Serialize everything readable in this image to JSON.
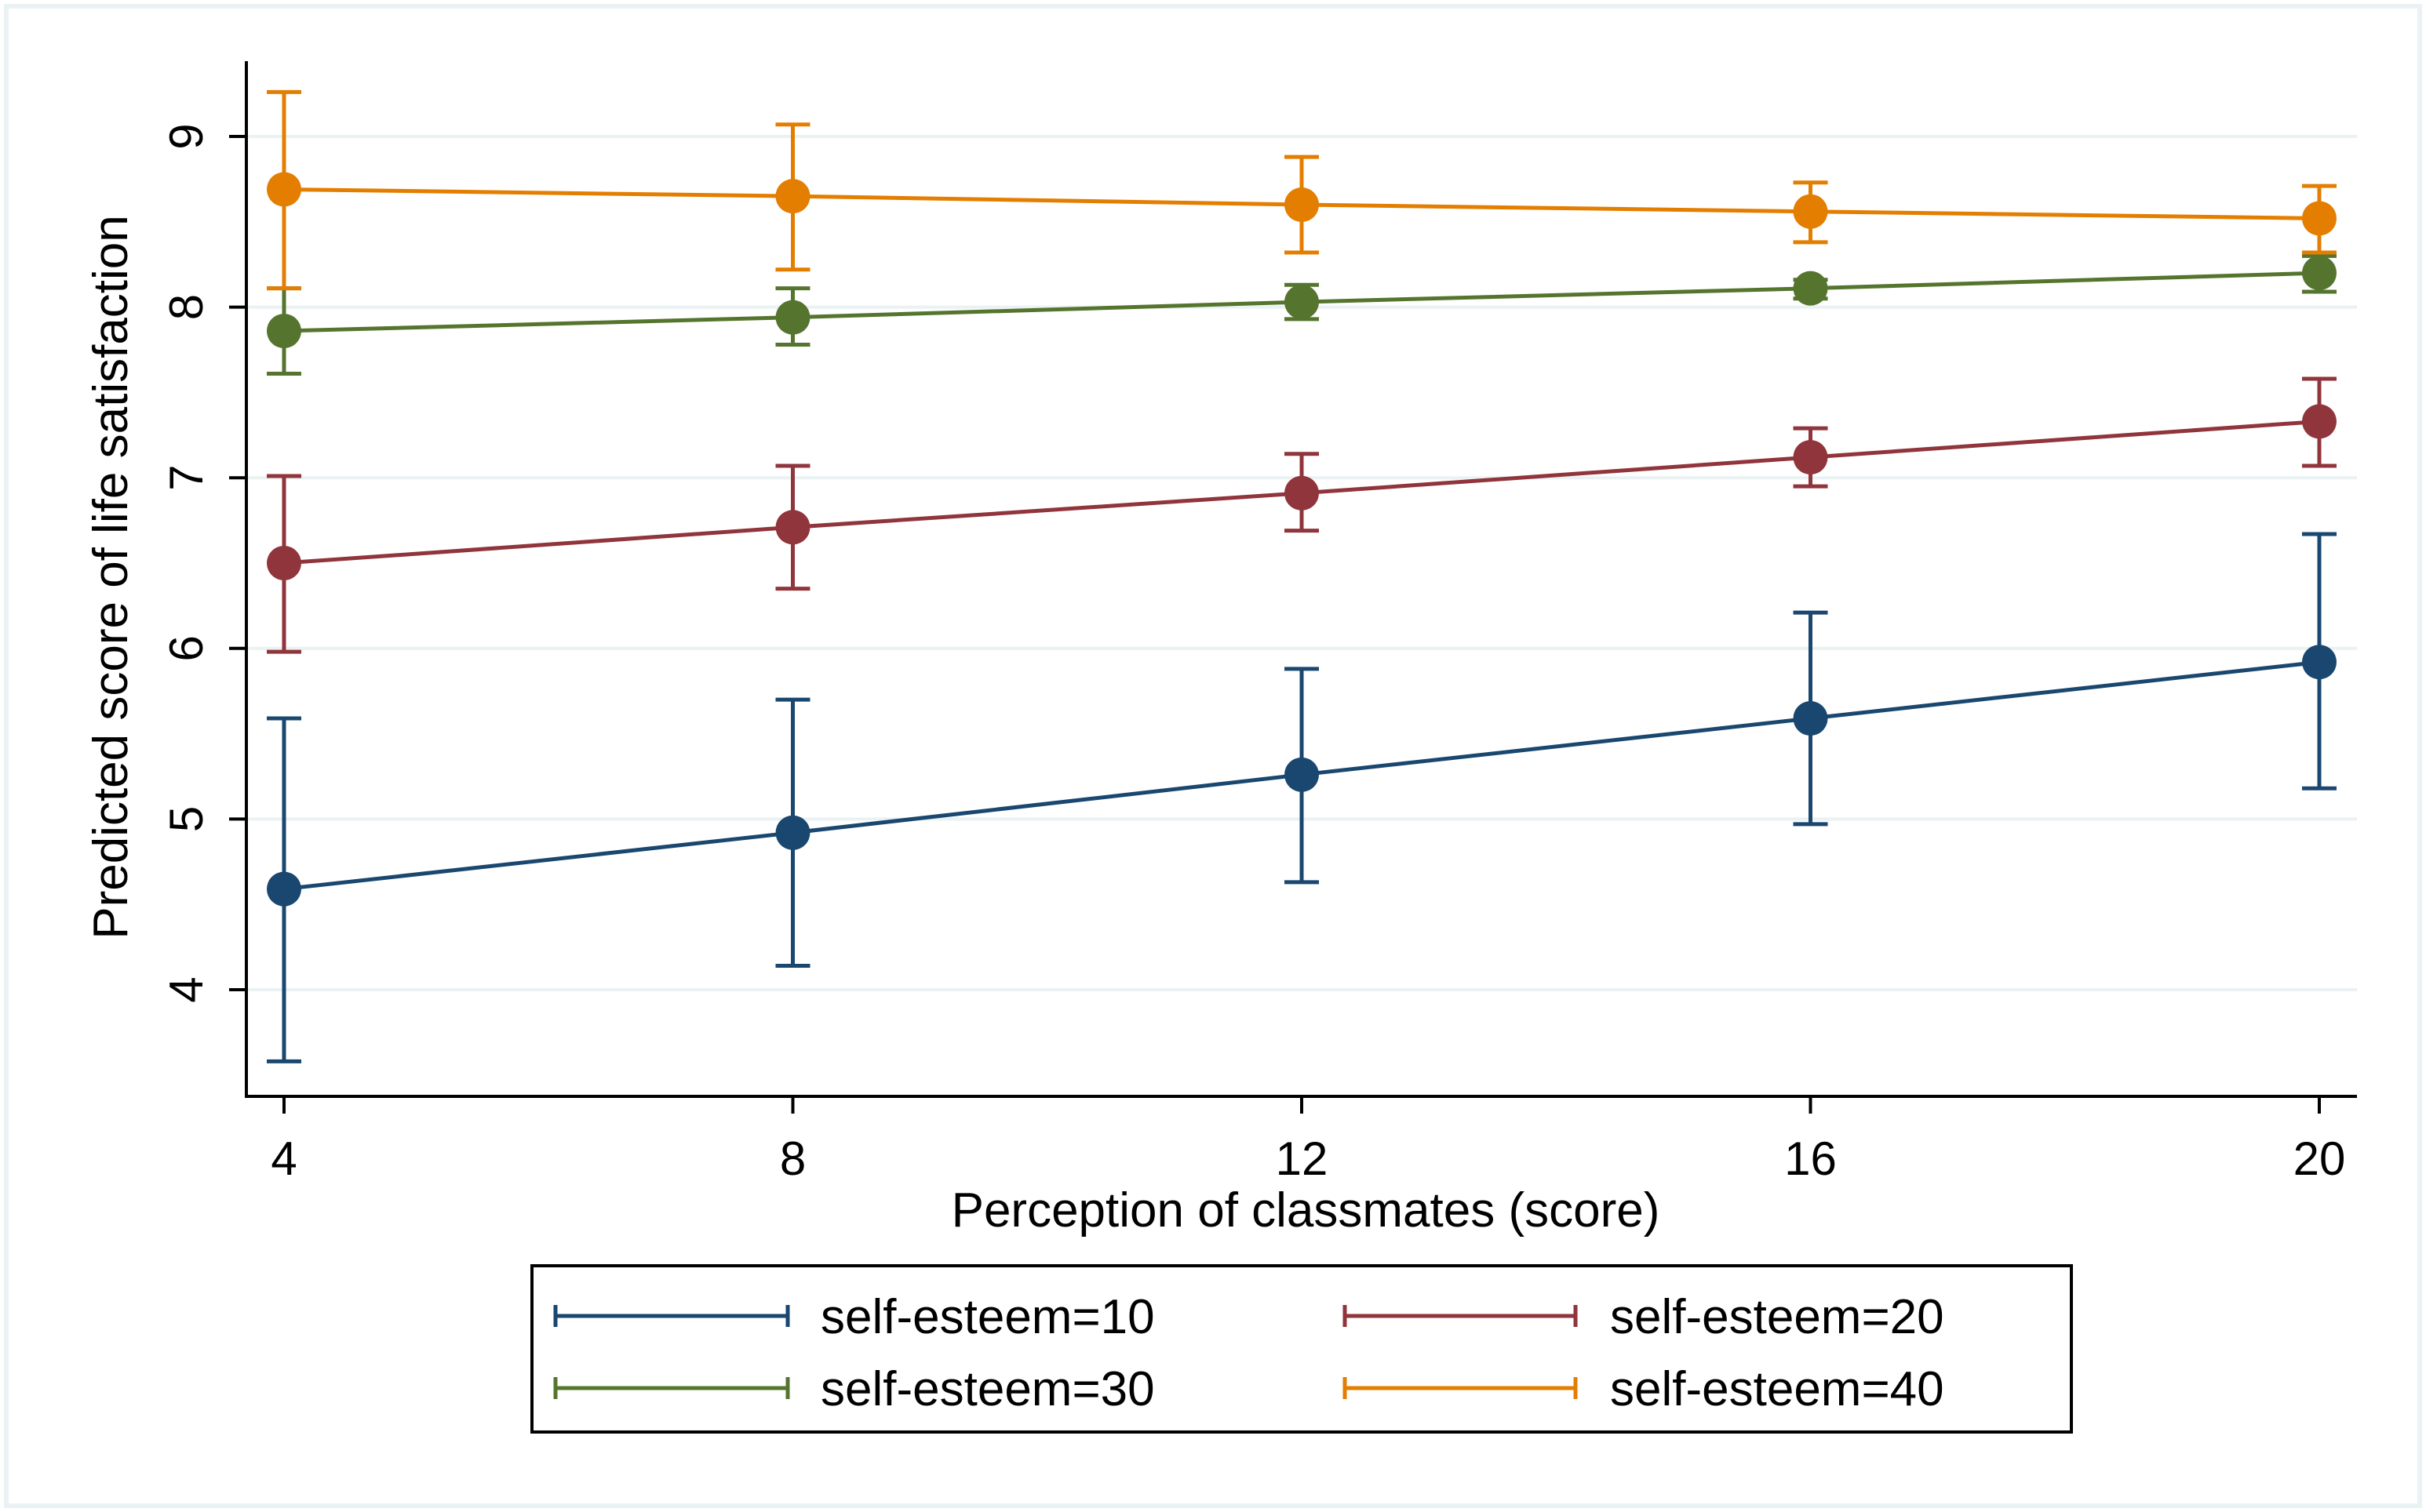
{
  "chart_data": {
    "type": "line",
    "title": "",
    "xlabel": "Perception of classmates (score)",
    "ylabel": "Predicted score of life satisfaction",
    "x": [
      4,
      8,
      12,
      16,
      20
    ],
    "xticks": [
      4,
      8,
      12,
      16,
      20
    ],
    "xtick_labels": [
      "4",
      "8",
      "12",
      "16",
      "20"
    ],
    "yticks": [
      4,
      5,
      6,
      7,
      8,
      9
    ],
    "ytick_labels": [
      "4",
      "5",
      "6",
      "7",
      "8",
      "9"
    ],
    "xlim": [
      3.7,
      20.3
    ],
    "ylim": [
      3.4,
      9.45
    ],
    "grid": true,
    "legend_position": "bottom",
    "series": [
      {
        "name": "self-esteem=10",
        "color": "#1a476f",
        "values": [
          4.59,
          4.92,
          5.26,
          5.59,
          5.92
        ],
        "lower": [
          3.58,
          4.14,
          4.63,
          4.97,
          5.18
        ],
        "upper": [
          5.59,
          5.7,
          5.88,
          6.21,
          6.67
        ]
      },
      {
        "name": "self-esteem=20",
        "color": "#90353b",
        "values": [
          6.5,
          6.71,
          6.91,
          7.12,
          7.33
        ],
        "lower": [
          5.98,
          6.35,
          6.69,
          6.95,
          7.07
        ],
        "upper": [
          7.01,
          7.07,
          7.14,
          7.29,
          7.58
        ]
      },
      {
        "name": "self-esteem=30",
        "color": "#55752f",
        "values": [
          7.86,
          7.94,
          8.03,
          8.11,
          8.2
        ],
        "lower": [
          7.61,
          7.78,
          7.93,
          8.05,
          8.09
        ],
        "upper": [
          8.11,
          8.11,
          8.13,
          8.16,
          8.3
        ]
      },
      {
        "name": "self-esteem=40",
        "color": "#e37e00",
        "values": [
          8.69,
          8.65,
          8.6,
          8.56,
          8.52
        ],
        "lower": [
          8.11,
          8.22,
          8.32,
          8.38,
          8.32
        ],
        "upper": [
          9.26,
          9.07,
          8.88,
          8.73,
          8.71
        ]
      }
    ]
  }
}
